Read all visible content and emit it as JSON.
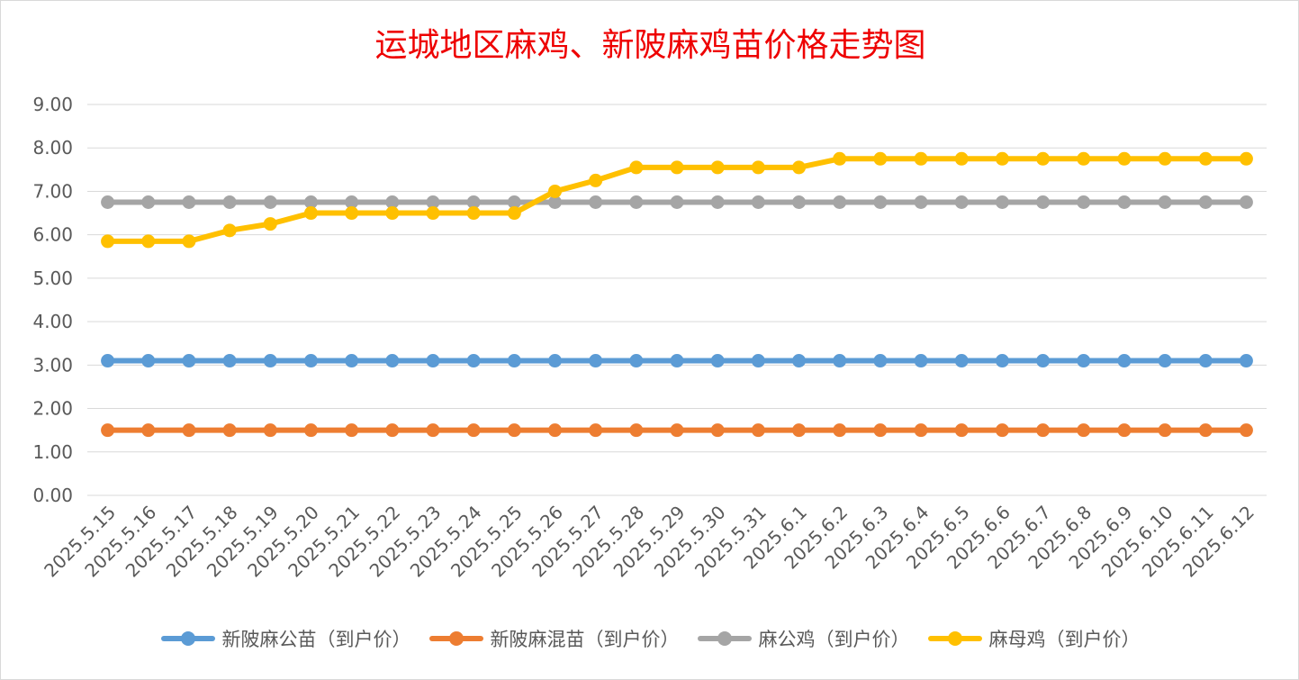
{
  "chart_data": {
    "type": "line",
    "title": "运城地区麻鸡、新陂麻鸡苗价格走势图",
    "xlabel": "",
    "ylabel": "",
    "ylim": [
      0,
      9
    ],
    "y_ticks": [
      "0.00",
      "1.00",
      "2.00",
      "3.00",
      "4.00",
      "5.00",
      "6.00",
      "7.00",
      "8.00",
      "9.00"
    ],
    "grid": true,
    "legend_position": "bottom",
    "categories": [
      "2025.5.15",
      "2025.5.16",
      "2025.5.17",
      "2025.5.18",
      "2025.5.19",
      "2025.5.20",
      "2025.5.21",
      "2025.5.22",
      "2025.5.23",
      "2025.5.24",
      "2025.5.25",
      "2025.5.26",
      "2025.5.27",
      "2025.5.28",
      "2025.5.29",
      "2025.5.30",
      "2025.5.31",
      "2025.6.1",
      "2025.6.2",
      "2025.6.3",
      "2025.6.4",
      "2025.6.5",
      "2025.6.6",
      "2025.6.7",
      "2025.6.8",
      "2025.6.9",
      "2025.6.10",
      "2025.6.11",
      "2025.6.12"
    ],
    "series": [
      {
        "name": "新陂麻公苗（到户价）",
        "color": "#5b9bd5",
        "values": [
          3.1,
          3.1,
          3.1,
          3.1,
          3.1,
          3.1,
          3.1,
          3.1,
          3.1,
          3.1,
          3.1,
          3.1,
          3.1,
          3.1,
          3.1,
          3.1,
          3.1,
          3.1,
          3.1,
          3.1,
          3.1,
          3.1,
          3.1,
          3.1,
          3.1,
          3.1,
          3.1,
          3.1,
          3.1
        ]
      },
      {
        "name": "新陂麻混苗（到户价）",
        "color": "#ed7d31",
        "values": [
          1.5,
          1.5,
          1.5,
          1.5,
          1.5,
          1.5,
          1.5,
          1.5,
          1.5,
          1.5,
          1.5,
          1.5,
          1.5,
          1.5,
          1.5,
          1.5,
          1.5,
          1.5,
          1.5,
          1.5,
          1.5,
          1.5,
          1.5,
          1.5,
          1.5,
          1.5,
          1.5,
          1.5,
          1.5
        ]
      },
      {
        "name": "麻公鸡（到户价）",
        "color": "#a5a5a5",
        "values": [
          6.75,
          6.75,
          6.75,
          6.75,
          6.75,
          6.75,
          6.75,
          6.75,
          6.75,
          6.75,
          6.75,
          6.75,
          6.75,
          6.75,
          6.75,
          6.75,
          6.75,
          6.75,
          6.75,
          6.75,
          6.75,
          6.75,
          6.75,
          6.75,
          6.75,
          6.75,
          6.75,
          6.75,
          6.75
        ]
      },
      {
        "name": "麻母鸡（到户价）",
        "color": "#ffc000",
        "values": [
          5.85,
          5.85,
          5.85,
          6.1,
          6.25,
          6.5,
          6.5,
          6.5,
          6.5,
          6.5,
          6.5,
          7.0,
          7.25,
          7.55,
          7.55,
          7.55,
          7.55,
          7.55,
          7.75,
          7.75,
          7.75,
          7.75,
          7.75,
          7.75,
          7.75,
          7.75,
          7.75,
          7.75,
          7.75
        ]
      }
    ]
  }
}
